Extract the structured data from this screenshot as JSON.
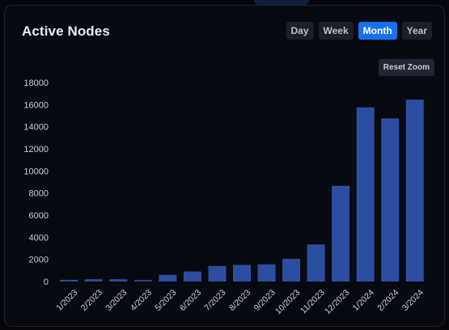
{
  "header": {
    "title": "Active Nodes"
  },
  "range_buttons": [
    {
      "label": "Day",
      "active": false
    },
    {
      "label": "Week",
      "active": false
    },
    {
      "label": "Month",
      "active": true
    },
    {
      "label": "Year",
      "active": false
    }
  ],
  "reset_zoom_label": "Reset Zoom",
  "colors": {
    "bar": "#2d4ea0",
    "accent": "#1670f0",
    "axis_text": "#c9ced8",
    "background": "#05070c"
  },
  "chart_data": {
    "type": "bar",
    "title": "Active Nodes",
    "xlabel": "",
    "ylabel": "",
    "categories": [
      "1/2023",
      "2/2023",
      "3/2023",
      "4/2023",
      "5/2023",
      "6/2023",
      "7/2023",
      "8/2023",
      "9/2023",
      "10/2023",
      "11/2023",
      "12/2023",
      "1/2024",
      "2/2024",
      "3/2024"
    ],
    "values": [
      150,
      200,
      200,
      130,
      600,
      900,
      1400,
      1500,
      1550,
      2050,
      3350,
      8650,
      15750,
      14750,
      16450
    ],
    "ylim": [
      0,
      18000
    ],
    "yticks": [
      0,
      2000,
      4000,
      6000,
      8000,
      10000,
      12000,
      14000,
      16000,
      18000
    ],
    "grid": false,
    "legend": "none"
  }
}
